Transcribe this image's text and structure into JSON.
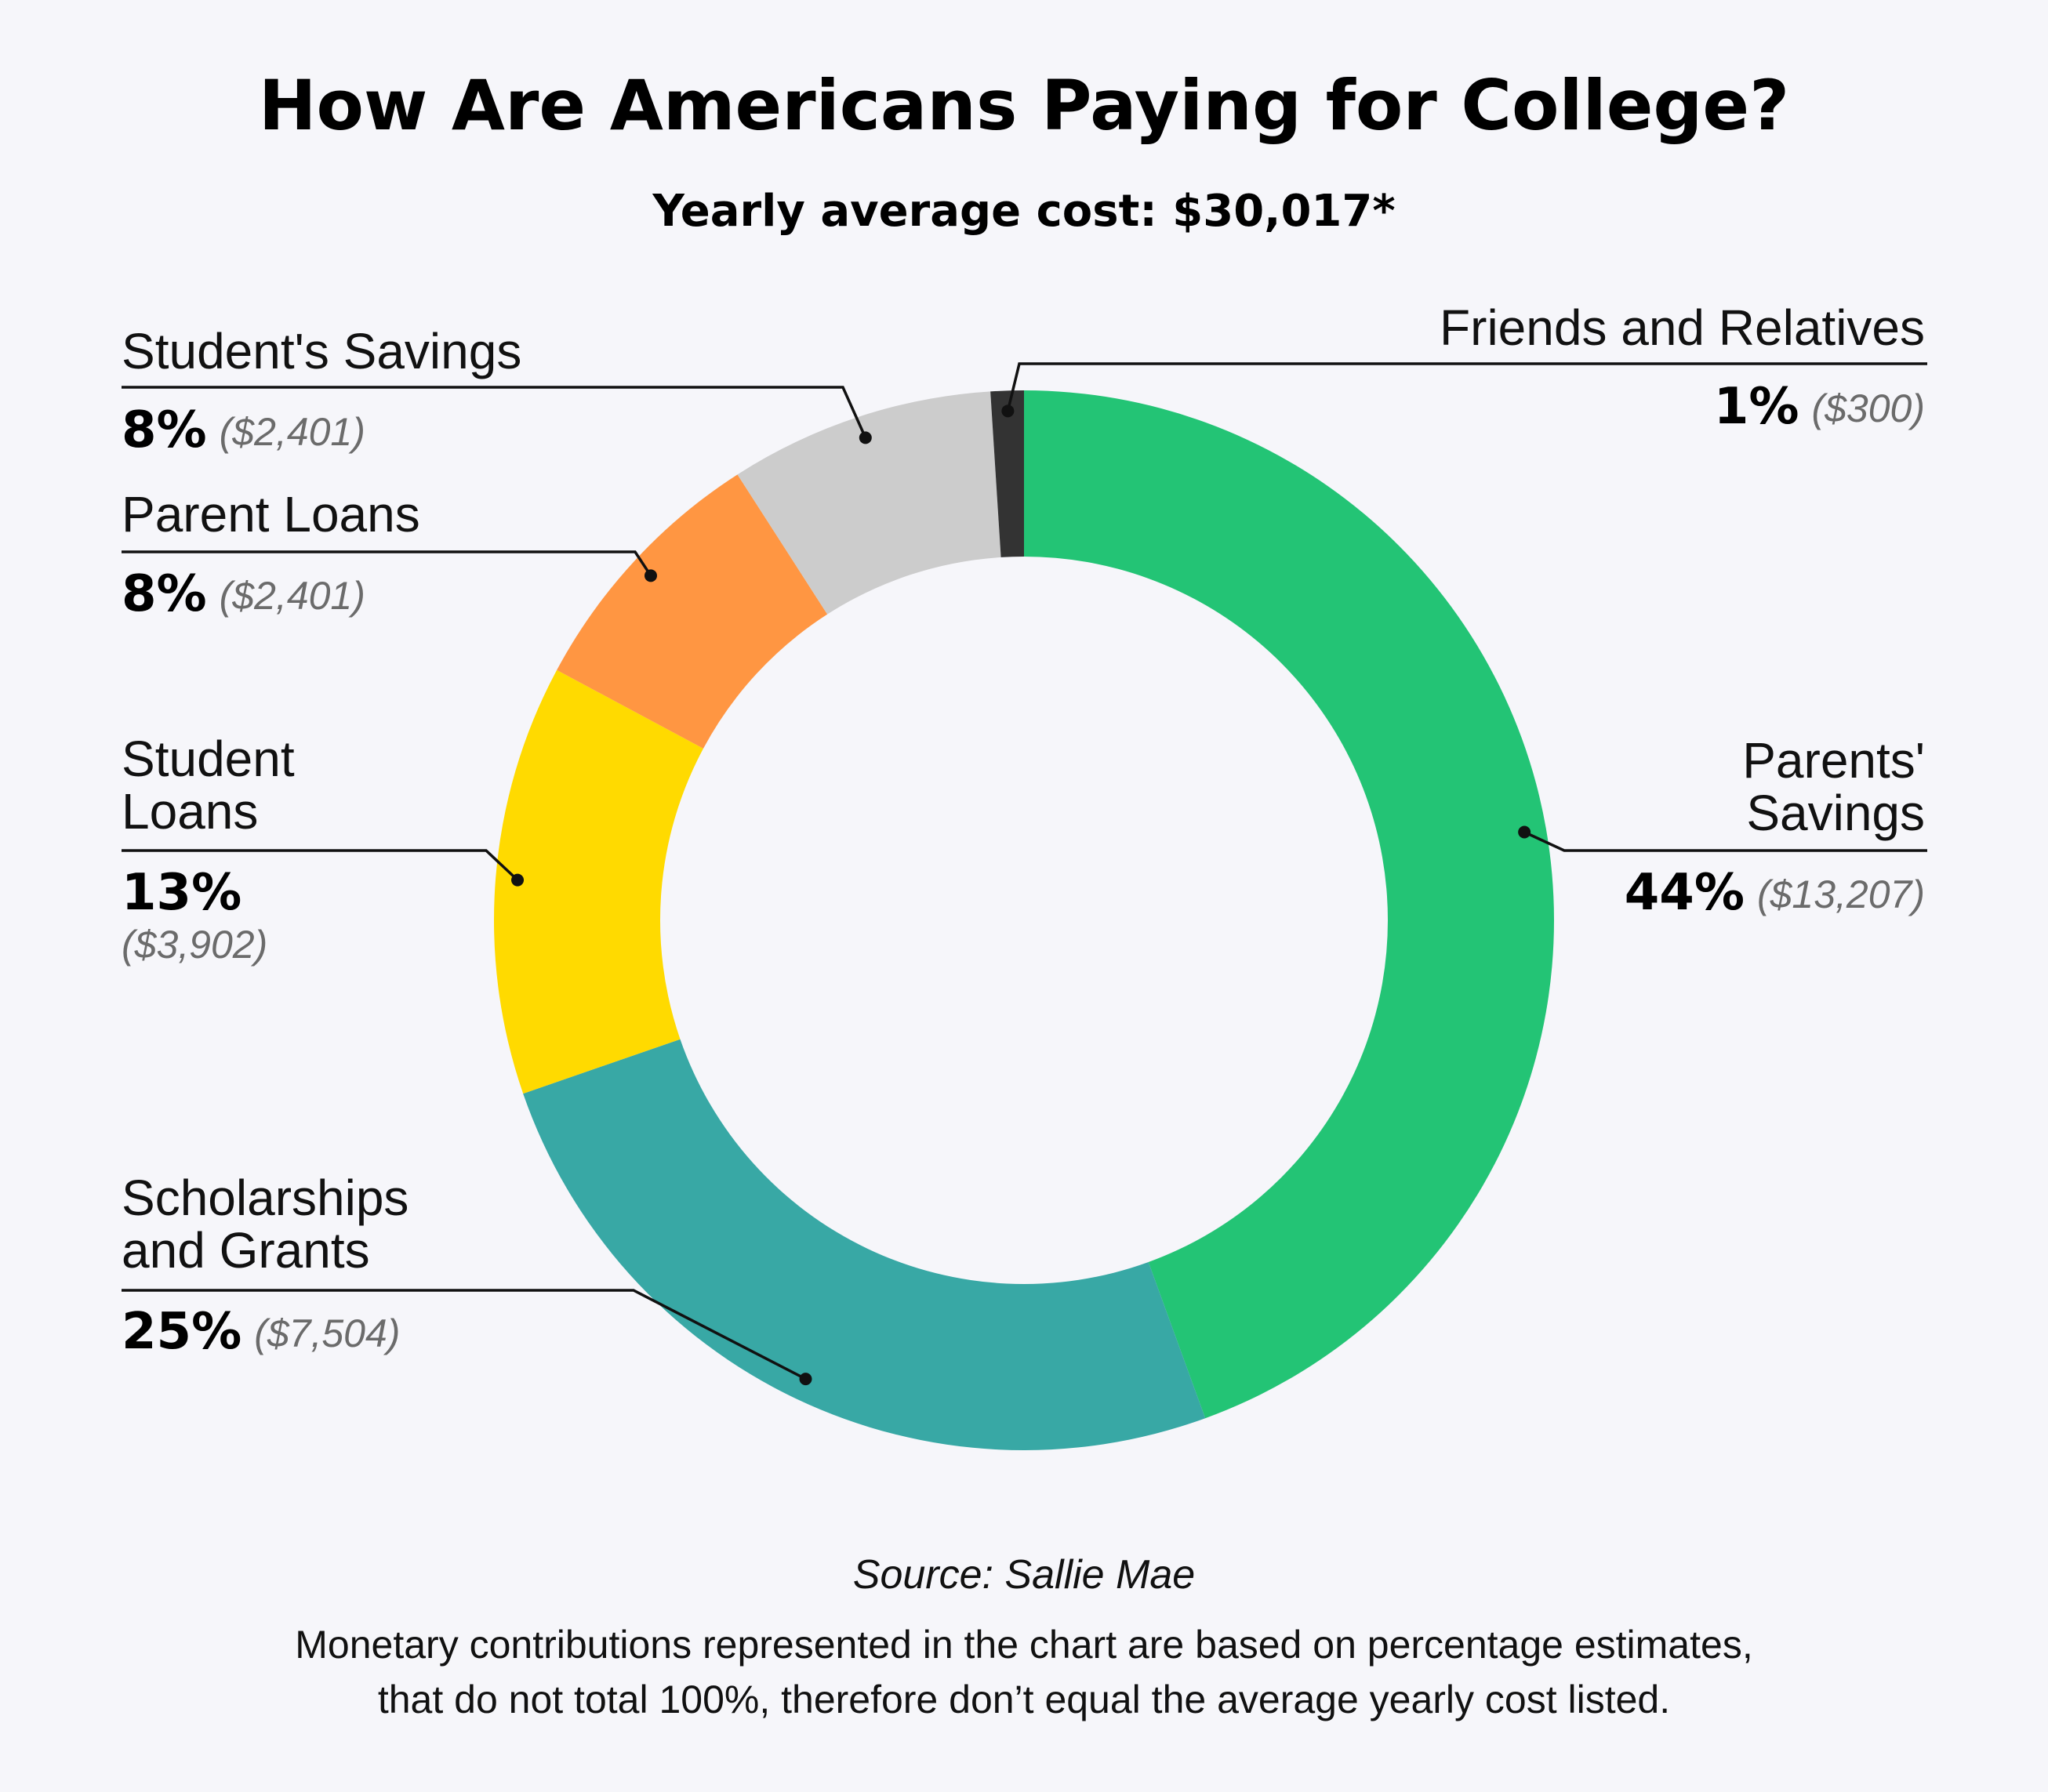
{
  "chart_data": {
    "type": "pie",
    "style": "donut",
    "title": "How Are Americans Paying for College?",
    "subtitle": "Yearly average cost: $30,017*",
    "slices": [
      {
        "label_lines": [
          "Parents'",
          "Savings"
        ],
        "value": 44,
        "percent_label": "44%",
        "amount_label": "($13,207)",
        "color": "#23c475"
      },
      {
        "label_lines": [
          "Scholarships",
          "and Grants"
        ],
        "value": 25,
        "percent_label": "25%",
        "amount_label": "($7,504)",
        "color": "#38a8a5"
      },
      {
        "label_lines": [
          "Student",
          "Loans"
        ],
        "value": 13,
        "percent_label": "13%",
        "amount_label": "($3,902)",
        "color": "#ffda00"
      },
      {
        "label_lines": [
          "Parent Loans"
        ],
        "value": 8,
        "percent_label": "8%",
        "amount_label": "($2,401)",
        "color": "#ff9642"
      },
      {
        "label_lines": [
          "Student's Savings"
        ],
        "value": 8,
        "percent_label": "8%",
        "amount_label": "($2,401)",
        "color": "#cccccc"
      },
      {
        "label_lines": [
          "Friends and Relatives"
        ],
        "value": 1,
        "percent_label": "1%",
        "amount_label": "($300)",
        "color": "#333333"
      }
    ],
    "source": "Source: Sallie Mae",
    "note_lines": [
      "Monetary contributions represented in the chart are based on percentage estimates,",
      "that do not total 100%, therefore don’t equal the average yearly cost listed."
    ]
  }
}
